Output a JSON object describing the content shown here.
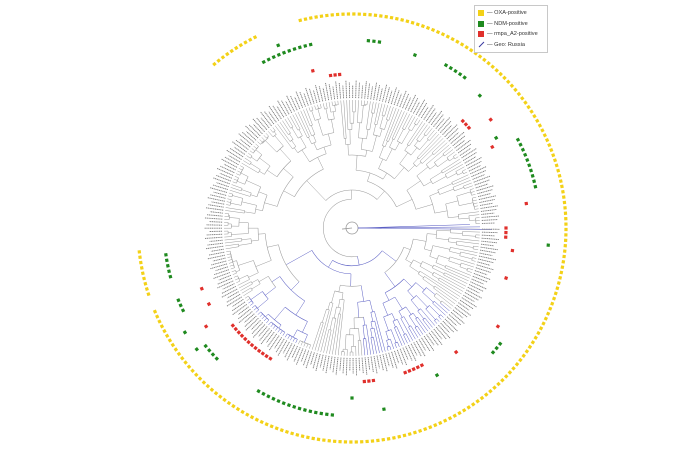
{
  "legend": {
    "items": [
      {
        "label": "— OXA-positive",
        "color": "#f3d117",
        "kind": "square"
      },
      {
        "label": "— NDM-positive",
        "color": "#1f8a1f",
        "kind": "square"
      },
      {
        "label": "— rmpa_A2-positive",
        "color": "#e0302c",
        "kind": "square"
      },
      {
        "label": "— Geo: Russia",
        "color": "#3a3aa0",
        "kind": "line"
      }
    ]
  },
  "colors": {
    "oxa": "#f3d117",
    "ndm": "#1f8a1f",
    "rmpa": "#e0302c",
    "branch": "#9a9a9a",
    "russia_branch": "#5b5fc4"
  },
  "tree": {
    "leaf_count": 270,
    "ring_start_deg": -40,
    "ring_end_deg": 265
  },
  "rings": {
    "oxa_spans": [
      [
        -40,
        -26
      ],
      [
        -14,
        248
      ],
      [
        252,
        265
      ]
    ],
    "ndm_spans": [
      [
        -28,
        -12
      ],
      [
        5,
        10
      ],
      [
        30,
        38
      ],
      [
        62,
        78
      ],
      [
        128,
        132
      ],
      [
        186,
        210
      ],
      [
        226,
        232
      ],
      [
        244,
        249
      ],
      [
        255,
        262
      ]
    ],
    "ndm_scatter": [
      [
        -22,
        "c"
      ],
      [
        20,
        "b"
      ],
      [
        44,
        "b"
      ],
      [
        58,
        "a"
      ],
      [
        95,
        "c"
      ],
      [
        150,
        "a"
      ],
      [
        170,
        "b"
      ],
      [
        180,
        "a"
      ],
      [
        232,
        "c"
      ],
      [
        238,
        "c"
      ]
    ],
    "rmpa_spans": [
      [
        -8,
        -4
      ],
      [
        46,
        50
      ],
      [
        90,
        94
      ],
      [
        153,
        160
      ],
      [
        172,
        176
      ],
      [
        212,
        232
      ]
    ],
    "rmpa_scatter": [
      [
        -14,
        "a"
      ],
      [
        52,
        "b"
      ],
      [
        60,
        "a"
      ],
      [
        82,
        "b"
      ],
      [
        98,
        "a"
      ],
      [
        108,
        "a"
      ],
      [
        124,
        "b"
      ],
      [
        140,
        "a"
      ],
      [
        236,
        "b"
      ],
      [
        242,
        "a"
      ],
      [
        248,
        "a"
      ]
    ]
  }
}
